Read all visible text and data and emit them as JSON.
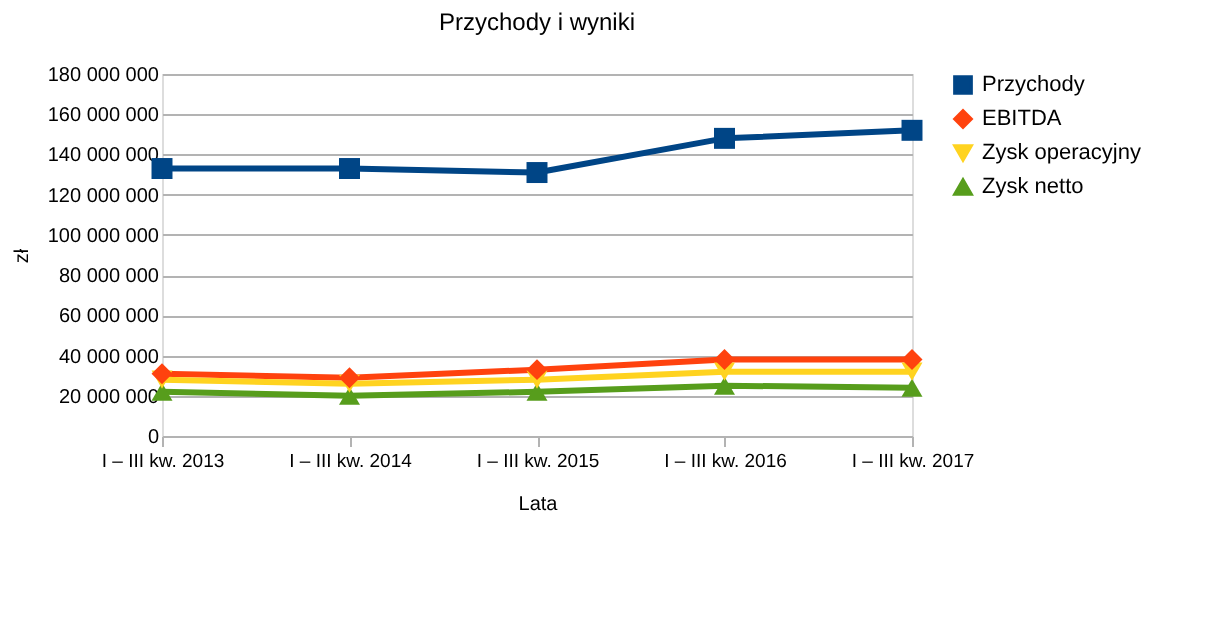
{
  "chart_data": {
    "type": "line",
    "title": "Przychody i wyniki",
    "xlabel": "Lata",
    "ylabel": "zł",
    "categories": [
      "I – III kw. 2013",
      "I – III kw. 2014",
      "I – III kw. 2015",
      "I – III kw. 2016",
      "I – III kw. 2017"
    ],
    "series": [
      {
        "name": "Przychody",
        "color": "#004586",
        "marker": "square",
        "values": [
          133000000,
          133000000,
          131000000,
          148000000,
          152000000
        ]
      },
      {
        "name": "EBITDA",
        "color": "#ff420e",
        "marker": "diamond",
        "values": [
          31000000,
          29000000,
          33000000,
          38000000,
          38000000
        ]
      },
      {
        "name": "Zysk operacyjny",
        "color": "#ffd320",
        "marker": "triangle-down",
        "values": [
          28000000,
          26000000,
          28000000,
          32000000,
          32000000
        ]
      },
      {
        "name": "Zysk netto",
        "color": "#579d1c",
        "marker": "triangle-up",
        "values": [
          22000000,
          20000000,
          22000000,
          25000000,
          24000000
        ]
      }
    ],
    "ylim": [
      0,
      180000000
    ],
    "yticks": [
      {
        "value": 0,
        "label": "0"
      },
      {
        "value": 20000000,
        "label": "20 000 000"
      },
      {
        "value": 40000000,
        "label": "40 000 000"
      },
      {
        "value": 60000000,
        "label": "60 000 000"
      },
      {
        "value": 80000000,
        "label": "80 000 000"
      },
      {
        "value": 100000000,
        "label": "100 000 000"
      },
      {
        "value": 120000000,
        "label": "120 000 000"
      },
      {
        "value": 140000000,
        "label": "140 000 000"
      },
      {
        "value": 160000000,
        "label": "160 000 000"
      },
      {
        "value": 180000000,
        "label": "180 000 000"
      }
    ],
    "grid": "y",
    "legend": "right",
    "line_style": "solid"
  }
}
